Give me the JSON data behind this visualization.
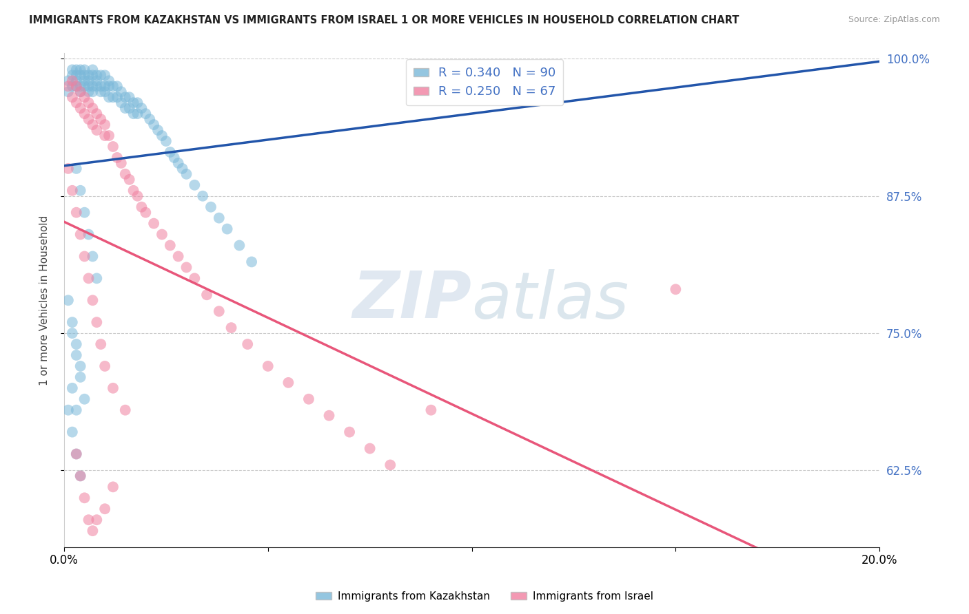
{
  "title": "IMMIGRANTS FROM KAZAKHSTAN VS IMMIGRANTS FROM ISRAEL 1 OR MORE VEHICLES IN HOUSEHOLD CORRELATION CHART",
  "source": "Source: ZipAtlas.com",
  "ylabel": "1 or more Vehicles in Household",
  "x_min": 0.0,
  "x_max": 0.2,
  "y_min": 0.555,
  "y_max": 1.005,
  "x_ticks": [
    0.0,
    0.05,
    0.1,
    0.15,
    0.2
  ],
  "x_tick_labels": [
    "0.0%",
    "",
    "",
    "",
    "20.0%"
  ],
  "y_ticks": [
    0.625,
    0.75,
    0.875,
    1.0
  ],
  "y_tick_labels": [
    "62.5%",
    "75.0%",
    "87.5%",
    "100.0%"
  ],
  "kazakhstan_color": "#7ab8d9",
  "israel_color": "#f080a0",
  "kazakhstan_line_color": "#2255aa",
  "israel_line_color": "#e8567a",
  "kazakhstan_R": 0.34,
  "kazakhstan_N": 90,
  "israel_R": 0.25,
  "israel_N": 67,
  "legend_label_kaz": "Immigrants from Kazakhstan",
  "legend_label_isr": "Immigrants from Israel",
  "watermark_zip": "ZIP",
  "watermark_atlas": "atlas",
  "kazakhstan_x": [
    0.001,
    0.001,
    0.002,
    0.002,
    0.002,
    0.003,
    0.003,
    0.003,
    0.003,
    0.004,
    0.004,
    0.004,
    0.004,
    0.005,
    0.005,
    0.005,
    0.005,
    0.006,
    0.006,
    0.006,
    0.006,
    0.007,
    0.007,
    0.007,
    0.007,
    0.008,
    0.008,
    0.008,
    0.009,
    0.009,
    0.009,
    0.01,
    0.01,
    0.01,
    0.011,
    0.011,
    0.011,
    0.012,
    0.012,
    0.013,
    0.013,
    0.014,
    0.014,
    0.015,
    0.015,
    0.016,
    0.016,
    0.017,
    0.017,
    0.018,
    0.018,
    0.019,
    0.02,
    0.021,
    0.022,
    0.023,
    0.024,
    0.025,
    0.026,
    0.027,
    0.028,
    0.029,
    0.03,
    0.032,
    0.034,
    0.036,
    0.038,
    0.04,
    0.043,
    0.046,
    0.003,
    0.004,
    0.005,
    0.006,
    0.007,
    0.008,
    0.002,
    0.003,
    0.004,
    0.005,
    0.001,
    0.002,
    0.003,
    0.004,
    0.001,
    0.002,
    0.003,
    0.004,
    0.002,
    0.003
  ],
  "kazakhstan_y": [
    0.98,
    0.97,
    0.99,
    0.985,
    0.975,
    0.99,
    0.985,
    0.98,
    0.975,
    0.99,
    0.985,
    0.975,
    0.97,
    0.99,
    0.985,
    0.98,
    0.975,
    0.985,
    0.98,
    0.975,
    0.97,
    0.99,
    0.985,
    0.975,
    0.97,
    0.985,
    0.98,
    0.975,
    0.985,
    0.975,
    0.97,
    0.985,
    0.975,
    0.97,
    0.98,
    0.975,
    0.965,
    0.975,
    0.965,
    0.975,
    0.965,
    0.97,
    0.96,
    0.965,
    0.955,
    0.965,
    0.955,
    0.96,
    0.95,
    0.96,
    0.95,
    0.955,
    0.95,
    0.945,
    0.94,
    0.935,
    0.93,
    0.925,
    0.915,
    0.91,
    0.905,
    0.9,
    0.895,
    0.885,
    0.875,
    0.865,
    0.855,
    0.845,
    0.83,
    0.815,
    0.9,
    0.88,
    0.86,
    0.84,
    0.82,
    0.8,
    0.75,
    0.73,
    0.71,
    0.69,
    0.68,
    0.66,
    0.64,
    0.62,
    0.78,
    0.76,
    0.74,
    0.72,
    0.7,
    0.68
  ],
  "israel_x": [
    0.001,
    0.002,
    0.002,
    0.003,
    0.003,
    0.004,
    0.004,
    0.005,
    0.005,
    0.006,
    0.006,
    0.007,
    0.007,
    0.008,
    0.008,
    0.009,
    0.01,
    0.01,
    0.011,
    0.012,
    0.013,
    0.014,
    0.015,
    0.016,
    0.017,
    0.018,
    0.019,
    0.02,
    0.022,
    0.024,
    0.026,
    0.028,
    0.03,
    0.032,
    0.035,
    0.038,
    0.041,
    0.045,
    0.05,
    0.055,
    0.06,
    0.065,
    0.07,
    0.075,
    0.08,
    0.001,
    0.002,
    0.003,
    0.004,
    0.005,
    0.006,
    0.007,
    0.008,
    0.009,
    0.01,
    0.012,
    0.015,
    0.003,
    0.004,
    0.005,
    0.006,
    0.007,
    0.008,
    0.01,
    0.012,
    0.15,
    0.09
  ],
  "israel_y": [
    0.975,
    0.98,
    0.965,
    0.975,
    0.96,
    0.97,
    0.955,
    0.965,
    0.95,
    0.96,
    0.945,
    0.955,
    0.94,
    0.95,
    0.935,
    0.945,
    0.94,
    0.93,
    0.93,
    0.92,
    0.91,
    0.905,
    0.895,
    0.89,
    0.88,
    0.875,
    0.865,
    0.86,
    0.85,
    0.84,
    0.83,
    0.82,
    0.81,
    0.8,
    0.785,
    0.77,
    0.755,
    0.74,
    0.72,
    0.705,
    0.69,
    0.675,
    0.66,
    0.645,
    0.63,
    0.9,
    0.88,
    0.86,
    0.84,
    0.82,
    0.8,
    0.78,
    0.76,
    0.74,
    0.72,
    0.7,
    0.68,
    0.64,
    0.62,
    0.6,
    0.58,
    0.57,
    0.58,
    0.59,
    0.61,
    0.79,
    0.68
  ]
}
